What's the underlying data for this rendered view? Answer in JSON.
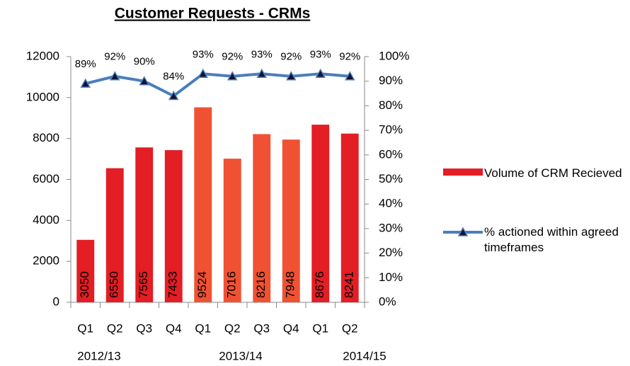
{
  "chart_data": {
    "type": "bar_line",
    "title": "Customer Requests - CRMs",
    "categories": [
      "Q1",
      "Q2",
      "Q3",
      "Q4",
      "Q1",
      "Q2",
      "Q3",
      "Q4",
      "Q1",
      "Q2"
    ],
    "category_groups": [
      "2012/13",
      "2013/14",
      "2014/15"
    ],
    "series": [
      {
        "name": "Volume of CRM Recieved",
        "type": "bar",
        "colors": [
          "#e31e24",
          "#e31e24",
          "#e31e24",
          "#e31e24",
          "#f05133",
          "#f05133",
          "#f05133",
          "#f05133",
          "#e31e24",
          "#e31e24"
        ],
        "values": [
          3050,
          6550,
          7565,
          7433,
          9524,
          7016,
          8216,
          7948,
          8676,
          8241
        ]
      },
      {
        "name": "% actioned within agreed timeframes",
        "type": "line",
        "axis": "y2",
        "color": "#4a7ebb",
        "marker_color": "#111133",
        "values": [
          89,
          92,
          90,
          84,
          93,
          92,
          93,
          92,
          93,
          92
        ],
        "value_labels": [
          "89%",
          "92%",
          "90%",
          "84%",
          "93%",
          "92%",
          "93%",
          "92%",
          "93%",
          "92%"
        ]
      }
    ],
    "ylim": [
      0,
      12000
    ],
    "yticks": [
      0,
      2000,
      4000,
      6000,
      8000,
      10000,
      12000
    ],
    "y2lim": [
      0,
      100
    ],
    "y2ticks": [
      {
        "value": 0,
        "label": "0%"
      },
      {
        "value": 10,
        "label": "10%"
      },
      {
        "value": 20,
        "label": "20%"
      },
      {
        "value": 30,
        "label": "30%"
      },
      {
        "value": 40,
        "label": "40%"
      },
      {
        "value": 50,
        "label": "50%"
      },
      {
        "value": 60,
        "label": "60%"
      },
      {
        "value": 70,
        "label": "70%"
      },
      {
        "value": 80,
        "label": "80%"
      },
      {
        "value": 90,
        "label": "90%"
      },
      {
        "value": 100,
        "label": "100%"
      }
    ],
    "legend": "right"
  }
}
